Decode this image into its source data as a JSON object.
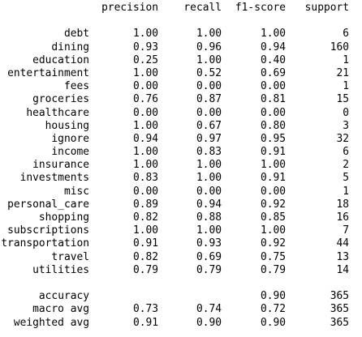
{
  "headers": {
    "precision": "precision",
    "recall": "recall",
    "f1": "f1-score",
    "support": "support"
  },
  "rows": [
    {
      "label": "debt",
      "precision": "1.00",
      "recall": "1.00",
      "f1": "1.00",
      "support": "6"
    },
    {
      "label": "dining",
      "precision": "0.93",
      "recall": "0.96",
      "f1": "0.94",
      "support": "160"
    },
    {
      "label": "education",
      "precision": "0.25",
      "recall": "1.00",
      "f1": "0.40",
      "support": "1"
    },
    {
      "label": "entertainment",
      "precision": "1.00",
      "recall": "0.52",
      "f1": "0.69",
      "support": "21"
    },
    {
      "label": "fees",
      "precision": "0.00",
      "recall": "0.00",
      "f1": "0.00",
      "support": "1"
    },
    {
      "label": "groceries",
      "precision": "0.76",
      "recall": "0.87",
      "f1": "0.81",
      "support": "15"
    },
    {
      "label": "healthcare",
      "precision": "0.00",
      "recall": "0.00",
      "f1": "0.00",
      "support": "0"
    },
    {
      "label": "housing",
      "precision": "1.00",
      "recall": "0.67",
      "f1": "0.80",
      "support": "3"
    },
    {
      "label": "ignore",
      "precision": "0.94",
      "recall": "0.97",
      "f1": "0.95",
      "support": "32"
    },
    {
      "label": "income",
      "precision": "1.00",
      "recall": "0.83",
      "f1": "0.91",
      "support": "6"
    },
    {
      "label": "insurance",
      "precision": "1.00",
      "recall": "1.00",
      "f1": "1.00",
      "support": "2"
    },
    {
      "label": "investments",
      "precision": "0.83",
      "recall": "1.00",
      "f1": "0.91",
      "support": "5"
    },
    {
      "label": "misc",
      "precision": "0.00",
      "recall": "0.00",
      "f1": "0.00",
      "support": "1"
    },
    {
      "label": "personal_care",
      "precision": "0.89",
      "recall": "0.94",
      "f1": "0.92",
      "support": "18"
    },
    {
      "label": "shopping",
      "precision": "0.82",
      "recall": "0.88",
      "f1": "0.85",
      "support": "16"
    },
    {
      "label": "subscriptions",
      "precision": "1.00",
      "recall": "1.00",
      "f1": "1.00",
      "support": "7"
    },
    {
      "label": "transportation",
      "precision": "0.91",
      "recall": "0.93",
      "f1": "0.92",
      "support": "44"
    },
    {
      "label": "travel",
      "precision": "0.82",
      "recall": "0.69",
      "f1": "0.75",
      "support": "13"
    },
    {
      "label": "utilities",
      "precision": "0.79",
      "recall": "0.79",
      "f1": "0.79",
      "support": "14"
    }
  ],
  "summary": [
    {
      "label": "accuracy",
      "precision": "",
      "recall": "",
      "f1": "0.90",
      "support": "365"
    },
    {
      "label": "macro avg",
      "precision": "0.73",
      "recall": "0.74",
      "f1": "0.72",
      "support": "365"
    },
    {
      "label": "weighted avg",
      "precision": "0.91",
      "recall": "0.90",
      "f1": "0.90",
      "support": "365"
    }
  ]
}
